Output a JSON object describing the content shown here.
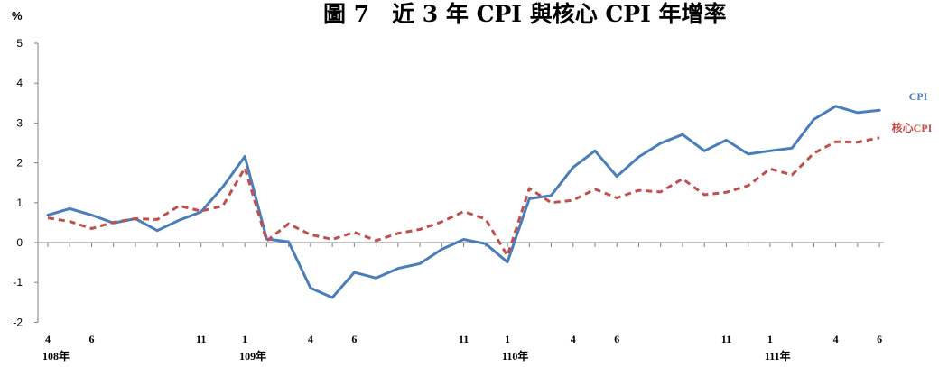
{
  "chart_data": {
    "type": "line",
    "title": "圖 7　近 3 年 CPI 與核心 CPI 年增率",
    "unit_label": "%",
    "ylim": [
      -2,
      5
    ],
    "yticks": [
      "-2",
      "-1",
      "0",
      "1",
      "2",
      "3",
      "4",
      "5"
    ],
    "grid": false,
    "legend_placement": "inline at right end of lines",
    "x_month_labels": [
      "4",
      "",
      "6",
      "",
      "",
      "",
      "",
      "11",
      "",
      "1",
      "",
      "",
      "4",
      "",
      "6",
      "",
      "",
      "",
      "",
      "11",
      "",
      "1",
      "",
      "",
      "4",
      "",
      "6",
      "",
      "",
      "",
      "",
      "11",
      "",
      "1",
      "",
      "",
      "4",
      "",
      "6"
    ],
    "x_year_labels": [
      {
        "index": 0,
        "text": "108年"
      },
      {
        "index": 9,
        "text": "109年"
      },
      {
        "index": 21,
        "text": "110年"
      },
      {
        "index": 33,
        "text": "111年"
      }
    ],
    "series": [
      {
        "name": "CPI",
        "color": "#4a7ebb",
        "style": "solid",
        "values": [
          0.69,
          0.85,
          0.69,
          0.49,
          0.6,
          0.3,
          0.56,
          0.77,
          1.4,
          2.16,
          0.09,
          0.02,
          -1.14,
          -1.38,
          -0.75,
          -0.89,
          -0.65,
          -0.53,
          -0.17,
          0.08,
          -0.03,
          -0.49,
          1.1,
          1.18,
          1.89,
          2.3,
          1.66,
          2.15,
          2.49,
          2.71,
          2.3,
          2.57,
          2.22,
          2.3,
          2.37,
          3.09,
          3.42,
          3.26,
          3.32
        ]
      },
      {
        "name": "核心CPI",
        "color": "#c0504d",
        "style": "dashed",
        "values": [
          0.62,
          0.53,
          0.35,
          0.51,
          0.6,
          0.58,
          0.92,
          0.79,
          0.92,
          1.87,
          0.04,
          0.47,
          0.2,
          0.08,
          0.26,
          0.05,
          0.23,
          0.33,
          0.52,
          0.78,
          0.59,
          -0.33,
          1.36,
          1.0,
          1.06,
          1.34,
          1.12,
          1.31,
          1.27,
          1.6,
          1.2,
          1.26,
          1.43,
          1.85,
          1.7,
          2.24,
          2.53,
          2.52,
          2.63
        ]
      }
    ]
  }
}
